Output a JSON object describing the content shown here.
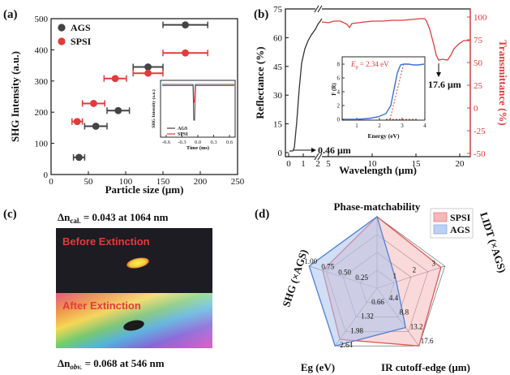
{
  "chart_data": [
    {
      "panel": "(a)",
      "type": "scatter",
      "xlabel": "Particle size (μm)",
      "ylabel": "SHG Intensity (a.u.)",
      "xlim": [
        0,
        250
      ],
      "ylim": [
        0,
        500
      ],
      "xticks": [
        "0",
        "50",
        "100",
        "150",
        "200",
        "250"
      ],
      "yticks": [
        "0",
        "100",
        "200",
        "300",
        "400",
        "500"
      ],
      "legend": [
        "AGS",
        "SPSI"
      ],
      "legend_position": "top-left",
      "series": [
        {
          "name": "AGS",
          "color": "#444444",
          "points": [
            {
              "x": 37.5,
              "y": 55,
              "xerr": 7.5
            },
            {
              "x": 60,
              "y": 155,
              "xerr": 15
            },
            {
              "x": 90,
              "y": 205,
              "xerr": 15
            },
            {
              "x": 130,
              "y": 345,
              "xerr": 20
            },
            {
              "x": 180,
              "y": 480,
              "xerr": 30
            }
          ]
        },
        {
          "name": "SPSI",
          "color": "#e23b3b",
          "points": [
            {
              "x": 35,
              "y": 170,
              "xerr": 7
            },
            {
              "x": 57,
              "y": 228,
              "xerr": 15
            },
            {
              "x": 86,
              "y": 308,
              "xerr": 15
            },
            {
              "x": 130,
              "y": 325,
              "xerr": 20
            },
            {
              "x": 180,
              "y": 390,
              "xerr": 30
            }
          ]
        }
      ],
      "inset": {
        "ylabel": "SHG Intensity (a.u.)",
        "xlabel": "Time (ms)",
        "xticks": [
          "-0.6",
          "-0.3",
          "0.0",
          "0.3",
          "0.6"
        ],
        "legend": [
          "AGS",
          "SPSI"
        ]
      }
    },
    {
      "panel": "(b)",
      "type": "line",
      "xlabel": "Wavelength (μm)",
      "ylabel_left": "Reflectance (%)",
      "ylabel_right": "Transmittance (%)",
      "left_yticks": [
        "0",
        "15",
        "30",
        "45",
        "60",
        "75"
      ],
      "right_yticks": [
        "-50",
        "-25",
        "0",
        "25",
        "50",
        "75",
        "100"
      ],
      "xticks_left": [
        "0",
        "1",
        "2"
      ],
      "xticks_right": [
        "5",
        "10",
        "15",
        "20"
      ],
      "annotations": [
        "0.46 μm",
        "17.6 μm"
      ],
      "inset": {
        "label_prefix": "E",
        "label_sub": "g",
        "label_value": " = 2.34 eV",
        "ylabel": "F (R)",
        "xlabel": "Energy (eV)",
        "xticks": [
          "1",
          "2",
          "3",
          "4"
        ],
        "yticks": [
          "0",
          "2",
          "4",
          "6",
          "8"
        ]
      },
      "series": [
        {
          "name": "Reflectance",
          "color": "#333333"
        },
        {
          "name": "Transmittance",
          "color": "#e23b3b"
        }
      ]
    },
    {
      "panel": "(d)",
      "type": "radar",
      "axes": [
        "Phase-matchability",
        "LIDT (×AGS)",
        "IR cutoff-edge (μm)",
        "Eg (eV)",
        "SHG (×AGS)"
      ],
      "legend": [
        "SPSI",
        "AGS"
      ],
      "legend_position": "top-right",
      "ring_labels": {
        "SHG": [
          "0.25",
          "0.50",
          "0.75",
          "1.00"
        ],
        "Eg": [
          "0.66",
          "1.32",
          "1.98",
          "2.64"
        ],
        "IR": [
          "4.4",
          "8.8",
          "13.2",
          "17.6"
        ],
        "LIDT": [
          "1",
          "2",
          "3"
        ]
      },
      "series": [
        {
          "name": "SPSI",
          "color": "#e98080",
          "values": {
            "phase": 1.0,
            "lidt": 3.3,
            "ir": 17.6,
            "eg": 2.34,
            "shg": 0.8
          }
        },
        {
          "name": "AGS",
          "color": "#8aaee8",
          "values": {
            "phase": 1.0,
            "lidt": 1.0,
            "ir": 12.0,
            "eg": 2.64,
            "shg": 1.0
          }
        }
      ]
    }
  ],
  "panel_c": {
    "label": "(c)",
    "top_prefix": "Δn",
    "top_sub": "cal.",
    "top_value": " = 0.043 at 1064 nm",
    "image_top_caption": "Before Extinction",
    "image_bottom_caption": "After Extinction",
    "bottom_prefix": "Δn",
    "bottom_sub": "obv.",
    "bottom_value": " = 0.068 at 546 nm"
  }
}
